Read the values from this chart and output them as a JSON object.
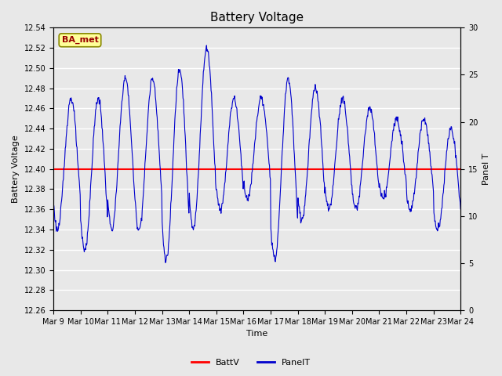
{
  "title": "Battery Voltage",
  "xlabel": "Time",
  "ylabel_left": "Battery Voltage",
  "ylabel_right": "Panel T",
  "ylim_left": [
    12.26,
    12.54
  ],
  "ylim_right": [
    0,
    30
  ],
  "yticks_left": [
    12.26,
    12.28,
    12.3,
    12.32,
    12.34,
    12.36,
    12.38,
    12.4,
    12.42,
    12.44,
    12.46,
    12.48,
    12.5,
    12.52,
    12.54
  ],
  "yticks_right": [
    0,
    5,
    10,
    15,
    20,
    25,
    30
  ],
  "batt_v": 12.4,
  "batt_color": "#ff0000",
  "panel_color": "#0000cc",
  "x_tick_labels": [
    "Mar 9",
    "Mar 10",
    "Mar 11",
    "Mar 12",
    "Mar 13",
    "Mar 14",
    "Mar 15",
    "Mar 16",
    "Mar 17",
    "Mar 18",
    "Mar 19",
    "Mar 20",
    "Mar 21",
    "Mar 22",
    "Mar 23",
    "Mar 24"
  ],
  "legend_batt_label": "BattV",
  "legend_panel_label": "PanelT",
  "annotation_text": "BA_met",
  "annotation_bg": "#ffff99",
  "annotation_border": "#888800",
  "annotation_text_color": "#990000",
  "bg_color": "#e8e8e8",
  "plot_bg_color": "#e8e8e8",
  "grid_color": "#ffffff",
  "title_fontsize": 11,
  "tick_fontsize": 7,
  "label_fontsize": 8
}
